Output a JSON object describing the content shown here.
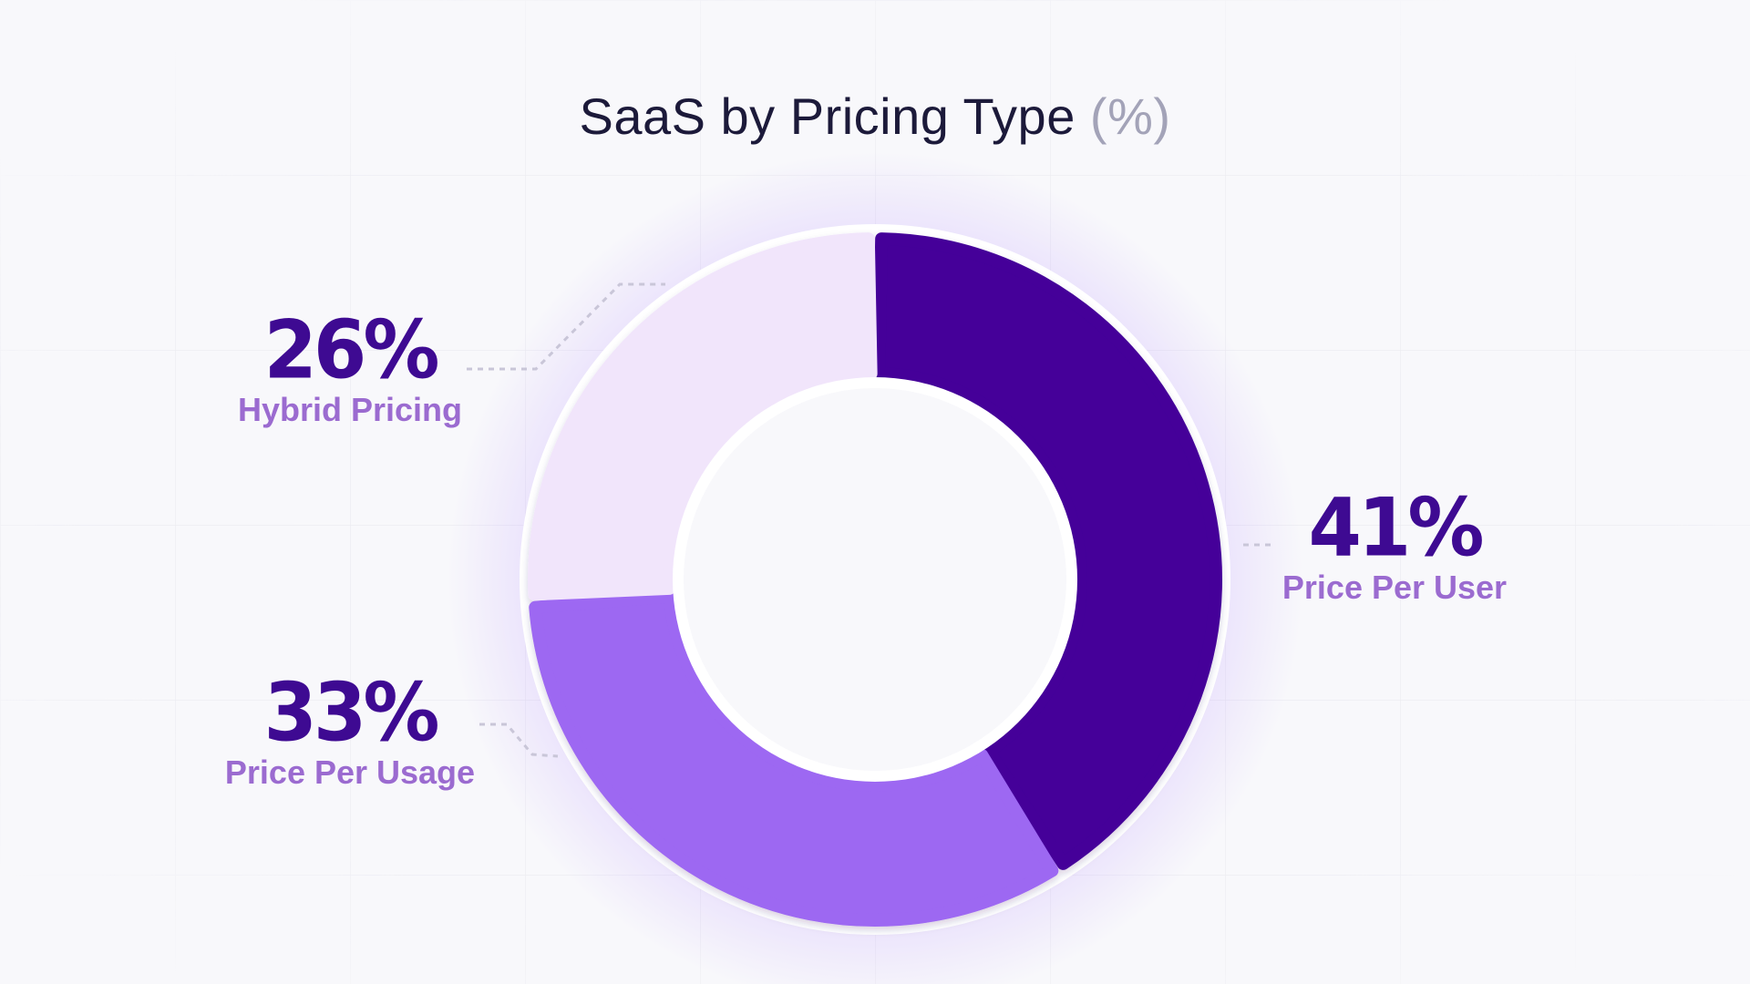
{
  "title": {
    "text": "SaaS by Pricing Type",
    "unit": "(%)"
  },
  "chart_data": {
    "type": "pie",
    "title": "SaaS by Pricing Type (%)",
    "unit": "%",
    "slices": [
      {
        "label": "Price Per User",
        "value": 41,
        "display": "41%",
        "color": "#440099"
      },
      {
        "label": "Price Per Usage",
        "value": 33,
        "display": "33%",
        "color": "#9d67f2"
      },
      {
        "label": "Hybrid Pricing",
        "value": 26,
        "display": "26%",
        "color": "#f1e5fb"
      }
    ],
    "colors": {
      "background": "#f8f8fb",
      "grid": "#ebebf1",
      "value_text": "#3e0a92",
      "label_text": "#9b6bd0",
      "ring_outline": "#ffffff",
      "connector": "#c9c6d8",
      "glow": "#b48cff"
    }
  }
}
